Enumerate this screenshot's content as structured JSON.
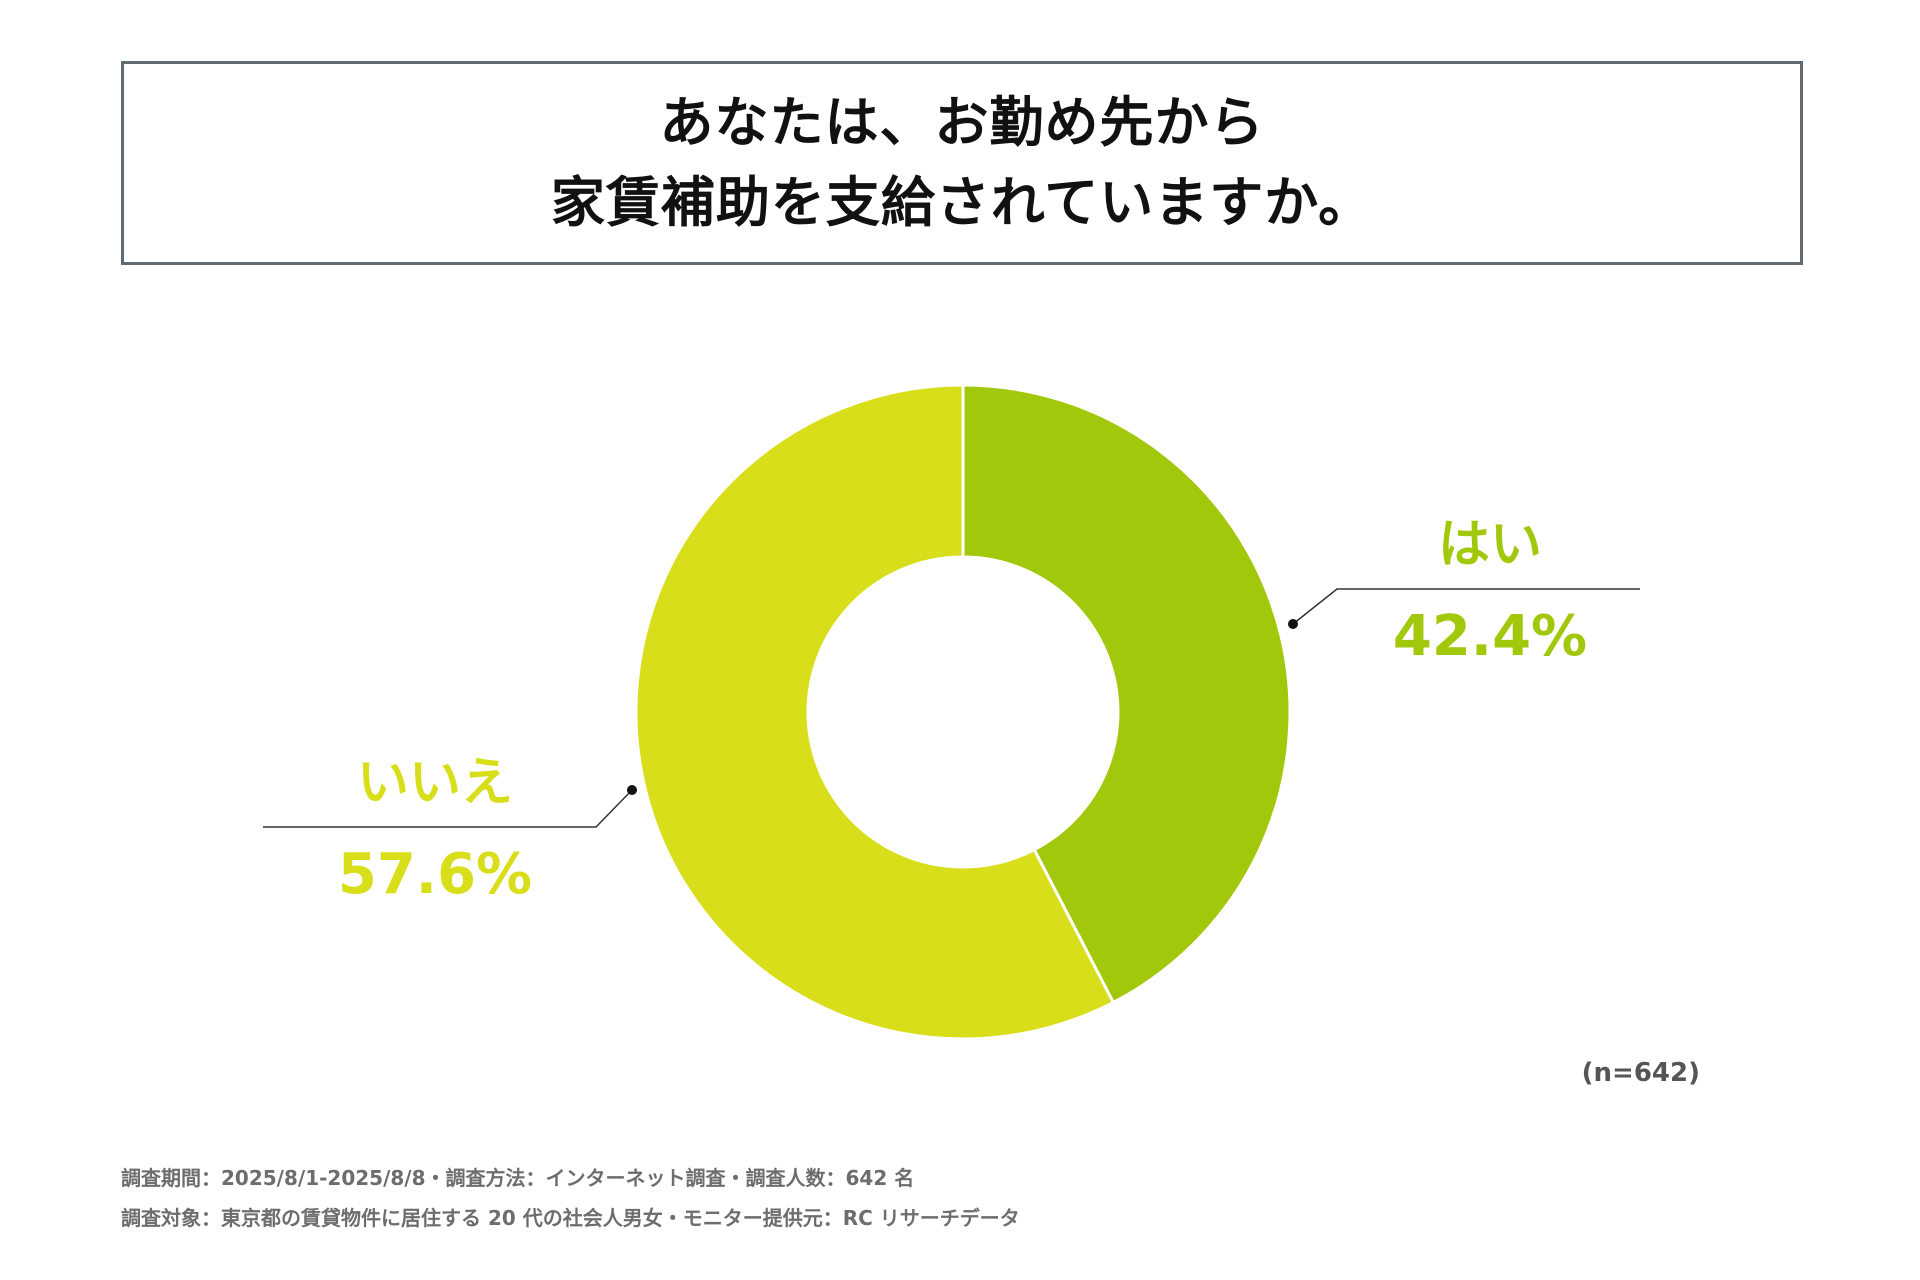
{
  "title": {
    "line1": "あなたは、お勤め先から",
    "line2": "家賃補助を支給されていますか。"
  },
  "sample_size": "(n=642)",
  "footnotes": {
    "line1": "調査期間：2025/8/1-2025/8/8・調査方法：インターネット調査・調査人数：642 名",
    "line2": "調査対象：東京都の賃貸物件に居住する 20 代の社会人男女・モニター提供元：RC リサーチデータ"
  },
  "chart_data": {
    "type": "pie",
    "donut": true,
    "title": "あなたは、お勤め先から家賃補助を支給されていますか。",
    "categories": [
      "はい",
      "いいえ"
    ],
    "values": [
      42.4,
      57.6
    ],
    "value_labels": [
      "42.4%",
      "57.6%"
    ],
    "colors": [
      "#a2c80c",
      "#d9de1a"
    ],
    "legend": "none"
  }
}
